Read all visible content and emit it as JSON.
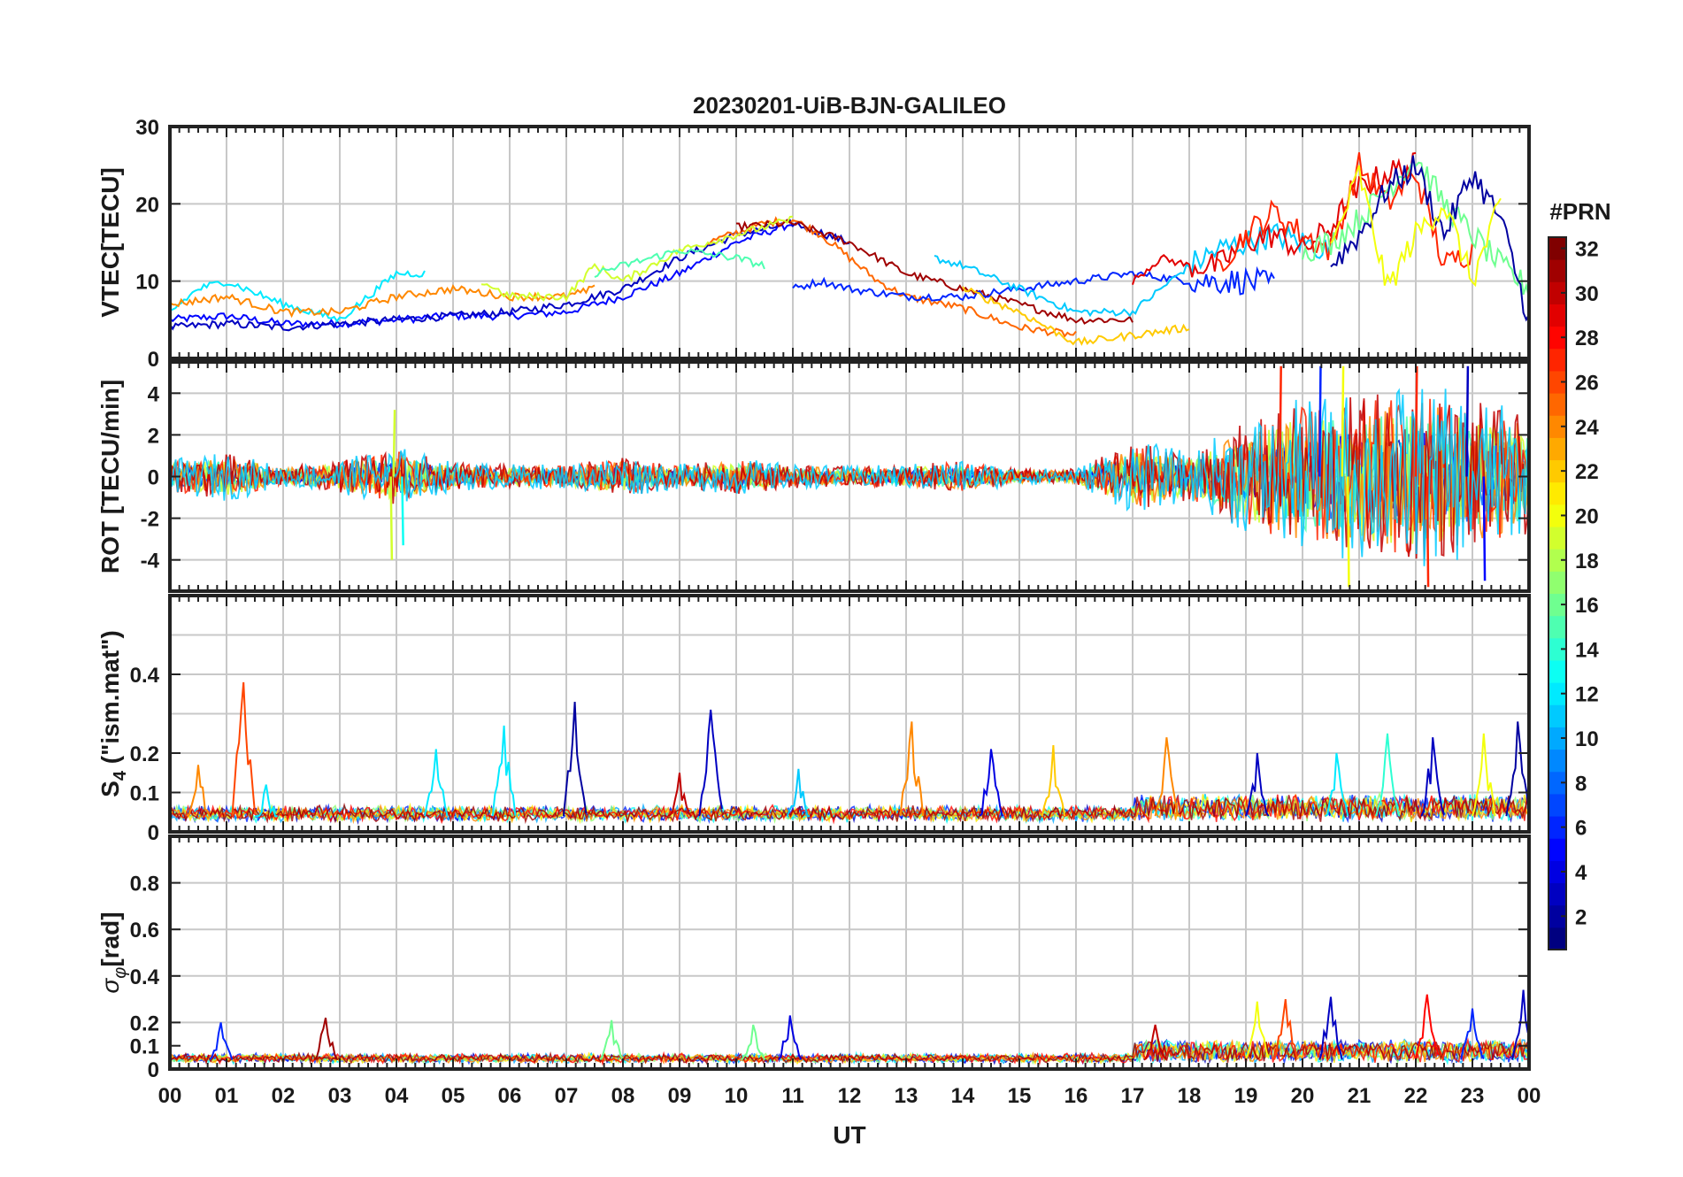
{
  "chart_data": {
    "type": "line",
    "title": "20230201-UiB-BJN-GALILEO",
    "xlabel": "UT",
    "x_tick_labels": [
      "00",
      "01",
      "02",
      "03",
      "04",
      "05",
      "06",
      "07",
      "08",
      "09",
      "10",
      "11",
      "12",
      "13",
      "14",
      "15",
      "16",
      "17",
      "18",
      "19",
      "20",
      "21",
      "22",
      "23",
      "00"
    ],
    "xlim": [
      0,
      24
    ],
    "panels": [
      {
        "id": "vtec",
        "ylabel": "VTEC[TECU]",
        "ylim": [
          0,
          30
        ],
        "y_ticks": [
          0,
          10,
          20,
          30
        ],
        "y_tick_labels": [
          "0",
          "10",
          "20",
          "30"
        ],
        "series": [
          {
            "prn": 5,
            "x": [
              0,
              1,
              2,
              3,
              4,
              5,
              6,
              7,
              8,
              9,
              10,
              11
            ],
            "y": [
              5,
              5.5,
              4.5,
              4.5,
              5,
              5.5,
              5.5,
              6,
              8,
              11,
              15,
              17.5
            ]
          },
          {
            "prn": 3,
            "x": [
              0,
              1,
              2,
              3,
              4,
              5,
              6,
              7,
              8,
              9,
              10,
              11,
              12
            ],
            "y": [
              4,
              4.5,
              4,
              4.5,
              5,
              5.5,
              6,
              7,
              9,
              13,
              16,
              17.5,
              15
            ]
          },
          {
            "prn": 25,
            "x": [
              9.5,
              10.5,
              11,
              11.5,
              12,
              12.5,
              13,
              14,
              15,
              16
            ],
            "y": [
              15,
              17.5,
              18,
              16,
              13,
              10,
              8,
              6.5,
              4,
              3
            ]
          },
          {
            "prn": 31,
            "x": [
              10,
              11,
              12,
              13,
              14,
              15,
              16,
              17
            ],
            "y": [
              17,
              17.5,
              15,
              11,
              9,
              7,
              5,
              5
            ]
          },
          {
            "prn": 6,
            "x": [
              11,
              11.5,
              12,
              13,
              14,
              15,
              16,
              17,
              18,
              19,
              19.5
            ],
            "y": [
              9,
              10,
              9,
              8,
              8,
              9,
              10,
              11,
              10,
              10,
              9.5
            ]
          },
          {
            "prn": 11,
            "x": [
              13.5,
              14,
              15,
              16,
              17,
              17.5,
              18,
              18.5,
              19,
              19.5,
              20,
              20.5
            ],
            "y": [
              13,
              12,
              9,
              6,
              6,
              9,
              12,
              14,
              15,
              16,
              15,
              14
            ]
          },
          {
            "prn": 29,
            "x": [
              17,
              17.5,
              18,
              18.5,
              19,
              19.5,
              20,
              20.5,
              21,
              21.5,
              22
            ],
            "y": [
              10,
              13,
              12,
              12,
              15,
              16,
              14,
              17,
              22,
              24,
              25
            ]
          },
          {
            "prn": 27,
            "x": [
              18.5,
              19,
              19.5,
              20,
              20.5,
              21,
              21.5,
              22,
              22.5,
              23
            ],
            "y": [
              12,
              16,
              19,
              16,
              14,
              25,
              20,
              24,
              12,
              14
            ]
          },
          {
            "prn": 16,
            "x": [
              20,
              20.5,
              21,
              21.5,
              22,
              22.5,
              23,
              23.5,
              24
            ],
            "y": [
              14,
              15,
              18,
              22,
              26,
              20,
              16,
              12,
              9
            ]
          },
          {
            "prn": 2,
            "x": [
              20.5,
              21,
              21.5,
              22,
              22.5,
              23,
              23.5,
              24
            ],
            "y": [
              12,
              16,
              22,
              25,
              16,
              24,
              18,
              5
            ]
          },
          {
            "prn": 20,
            "x": [
              20.5,
              21,
              21.5,
              22,
              22.5,
              23,
              23.5
            ],
            "y": [
              14,
              24,
              9,
              16,
              20,
              10,
              20
            ]
          },
          {
            "prn": 12,
            "x": [
              0,
              0.5,
              1,
              2,
              3,
              4,
              4.5
            ],
            "y": [
              6,
              9,
              10,
              7,
              5,
              11,
              11
            ]
          },
          {
            "prn": 24,
            "x": [
              0,
              1,
              2,
              3,
              4,
              5,
              6,
              7,
              7.5
            ],
            "y": [
              7,
              8,
              6,
              6,
              8,
              9,
              8,
              8,
              9
            ]
          },
          {
            "prn": 19,
            "x": [
              5.5,
              6,
              7,
              7.5,
              8,
              9,
              10,
              11
            ],
            "y": [
              10,
              8,
              8,
              12,
              10,
              14,
              16,
              18
            ]
          },
          {
            "prn": 15,
            "x": [
              7.5,
              8,
              9,
              10,
              10.5
            ],
            "y": [
              11,
              12,
              14,
              13,
              12
            ]
          },
          {
            "prn": 22,
            "x": [
              14,
              15,
              16,
              17,
              18
            ],
            "y": [
              9,
              6,
              2,
              3,
              4
            ]
          }
        ]
      },
      {
        "id": "rot",
        "ylabel": "ROT [TECU/min]",
        "ylim": [
          -5.5,
          5.5
        ],
        "y_ticks": [
          -4,
          -2,
          0,
          2,
          4
        ],
        "y_tick_labels": [
          "-4",
          "-2",
          "0",
          "2",
          "4"
        ],
        "envelope": {
          "x": [
            0,
            1,
            2,
            3,
            4,
            5,
            6,
            7,
            8,
            9,
            10,
            11,
            12,
            13,
            14,
            15,
            16,
            17,
            18,
            19,
            20,
            21,
            22,
            23,
            24
          ],
          "amplitude": [
            0.8,
            1.2,
            0.5,
            0.8,
            1.5,
            0.7,
            0.6,
            0.6,
            1.0,
            0.6,
            0.9,
            0.6,
            0.5,
            0.6,
            0.8,
            0.4,
            0.4,
            1.8,
            1.2,
            2.8,
            3.8,
            4.2,
            4.5,
            4.0,
            3.0
          ]
        },
        "series": [
          {
            "prn": 30,
            "x": [
              0,
              2,
              4,
              6,
              8,
              10,
              12,
              14,
              16,
              17,
              18,
              19,
              20,
              21,
              22,
              23,
              24
            ],
            "y": [
              0,
              0,
              0,
              0,
              0,
              0,
              0,
              0,
              0,
              0,
              0,
              0,
              0,
              0,
              0,
              0,
              0
            ]
          }
        ],
        "spikes": [
          {
            "x": 3.9,
            "y": -4.0,
            "prn": 19
          },
          {
            "x": 3.95,
            "y": 3.2,
            "prn": 19
          },
          {
            "x": 4.1,
            "y": -3.3,
            "prn": 13
          },
          {
            "x": 19.6,
            "y": 5.3,
            "prn": 27
          },
          {
            "x": 20.3,
            "y": 5.3,
            "prn": 6
          },
          {
            "x": 20.7,
            "y": 5.3,
            "prn": 20
          },
          {
            "x": 20.8,
            "y": -5.3,
            "prn": 20
          },
          {
            "x": 22.0,
            "y": 5.3,
            "prn": 27
          },
          {
            "x": 22.2,
            "y": -5.3,
            "prn": 27
          },
          {
            "x": 22.9,
            "y": 5.3,
            "prn": 3
          },
          {
            "x": 23.2,
            "y": -5.0,
            "prn": 5
          }
        ]
      },
      {
        "id": "s4",
        "ylabel_main": "S",
        "ylabel_sub": "4",
        "ylabel_rest": " (\"ism.mat\")",
        "ylim": [
          0,
          0.6
        ],
        "y_ticks": [
          0,
          0.1,
          0.2,
          0.4
        ],
        "y_tick_labels": [
          "0",
          "0.1",
          "0.2",
          "0.4"
        ],
        "grid_values": [
          0.1,
          0.2,
          0.3,
          0.4,
          0.5
        ],
        "baseline": 0.04,
        "spikes": [
          {
            "x": 0.5,
            "y": 0.17,
            "prn": 24
          },
          {
            "x": 1.3,
            "y": 0.38,
            "prn": 26
          },
          {
            "x": 1.7,
            "y": 0.12,
            "prn": 12
          },
          {
            "x": 4.7,
            "y": 0.21,
            "prn": 12
          },
          {
            "x": 5.9,
            "y": 0.27,
            "prn": 12
          },
          {
            "x": 7.15,
            "y": 0.33,
            "prn": 2
          },
          {
            "x": 9.0,
            "y": 0.15,
            "prn": 30
          },
          {
            "x": 9.55,
            "y": 0.31,
            "prn": 3
          },
          {
            "x": 11.1,
            "y": 0.16,
            "prn": 11
          },
          {
            "x": 13.1,
            "y": 0.28,
            "prn": 24
          },
          {
            "x": 14.5,
            "y": 0.21,
            "prn": 4
          },
          {
            "x": 15.6,
            "y": 0.22,
            "prn": 22
          },
          {
            "x": 17.6,
            "y": 0.24,
            "prn": 24
          },
          {
            "x": 19.2,
            "y": 0.2,
            "prn": 3
          },
          {
            "x": 20.6,
            "y": 0.2,
            "prn": 12
          },
          {
            "x": 21.5,
            "y": 0.25,
            "prn": 14
          },
          {
            "x": 22.3,
            "y": 0.24,
            "prn": 3
          },
          {
            "x": 23.2,
            "y": 0.25,
            "prn": 20
          },
          {
            "x": 23.8,
            "y": 0.28,
            "prn": 2
          }
        ]
      },
      {
        "id": "sigma",
        "ylabel_main": "σ",
        "ylabel_sub": "φ",
        "ylabel_rest": "[rad]",
        "ylim": [
          0,
          1
        ],
        "y_ticks": [
          0,
          0.1,
          0.2,
          0.4,
          0.6,
          0.8
        ],
        "y_tick_labels": [
          "0",
          "0.1",
          "0.2",
          "0.4",
          "0.6",
          "0.8"
        ],
        "grid_values": [
          0.2,
          0.4,
          0.6,
          0.8
        ],
        "baseline": 0.04,
        "spikes": [
          {
            "x": 0.9,
            "y": 0.2,
            "prn": 6
          },
          {
            "x": 2.75,
            "y": 0.22,
            "prn": 31
          },
          {
            "x": 7.8,
            "y": 0.21,
            "prn": 16
          },
          {
            "x": 10.3,
            "y": 0.19,
            "prn": 16
          },
          {
            "x": 10.95,
            "y": 0.23,
            "prn": 4
          },
          {
            "x": 17.4,
            "y": 0.19,
            "prn": 30
          },
          {
            "x": 19.2,
            "y": 0.29,
            "prn": 20
          },
          {
            "x": 19.7,
            "y": 0.3,
            "prn": 26
          },
          {
            "x": 20.5,
            "y": 0.31,
            "prn": 3
          },
          {
            "x": 22.2,
            "y": 0.32,
            "prn": 28
          },
          {
            "x": 23.0,
            "y": 0.26,
            "prn": 6
          },
          {
            "x": 23.9,
            "y": 0.34,
            "prn": 3
          }
        ]
      }
    ],
    "colorbar": {
      "label": "#PRN",
      "colormap": "jet",
      "min": 1,
      "max": 32,
      "ticks": [
        2,
        4,
        6,
        8,
        10,
        12,
        14,
        16,
        18,
        20,
        22,
        24,
        26,
        28,
        30,
        32
      ],
      "tick_labels": [
        "2",
        "4",
        "6",
        "8",
        "10",
        "12",
        "14",
        "16",
        "18",
        "20",
        "22",
        "24",
        "26",
        "28",
        "30",
        "32"
      ],
      "position": "right"
    },
    "grid": true
  }
}
